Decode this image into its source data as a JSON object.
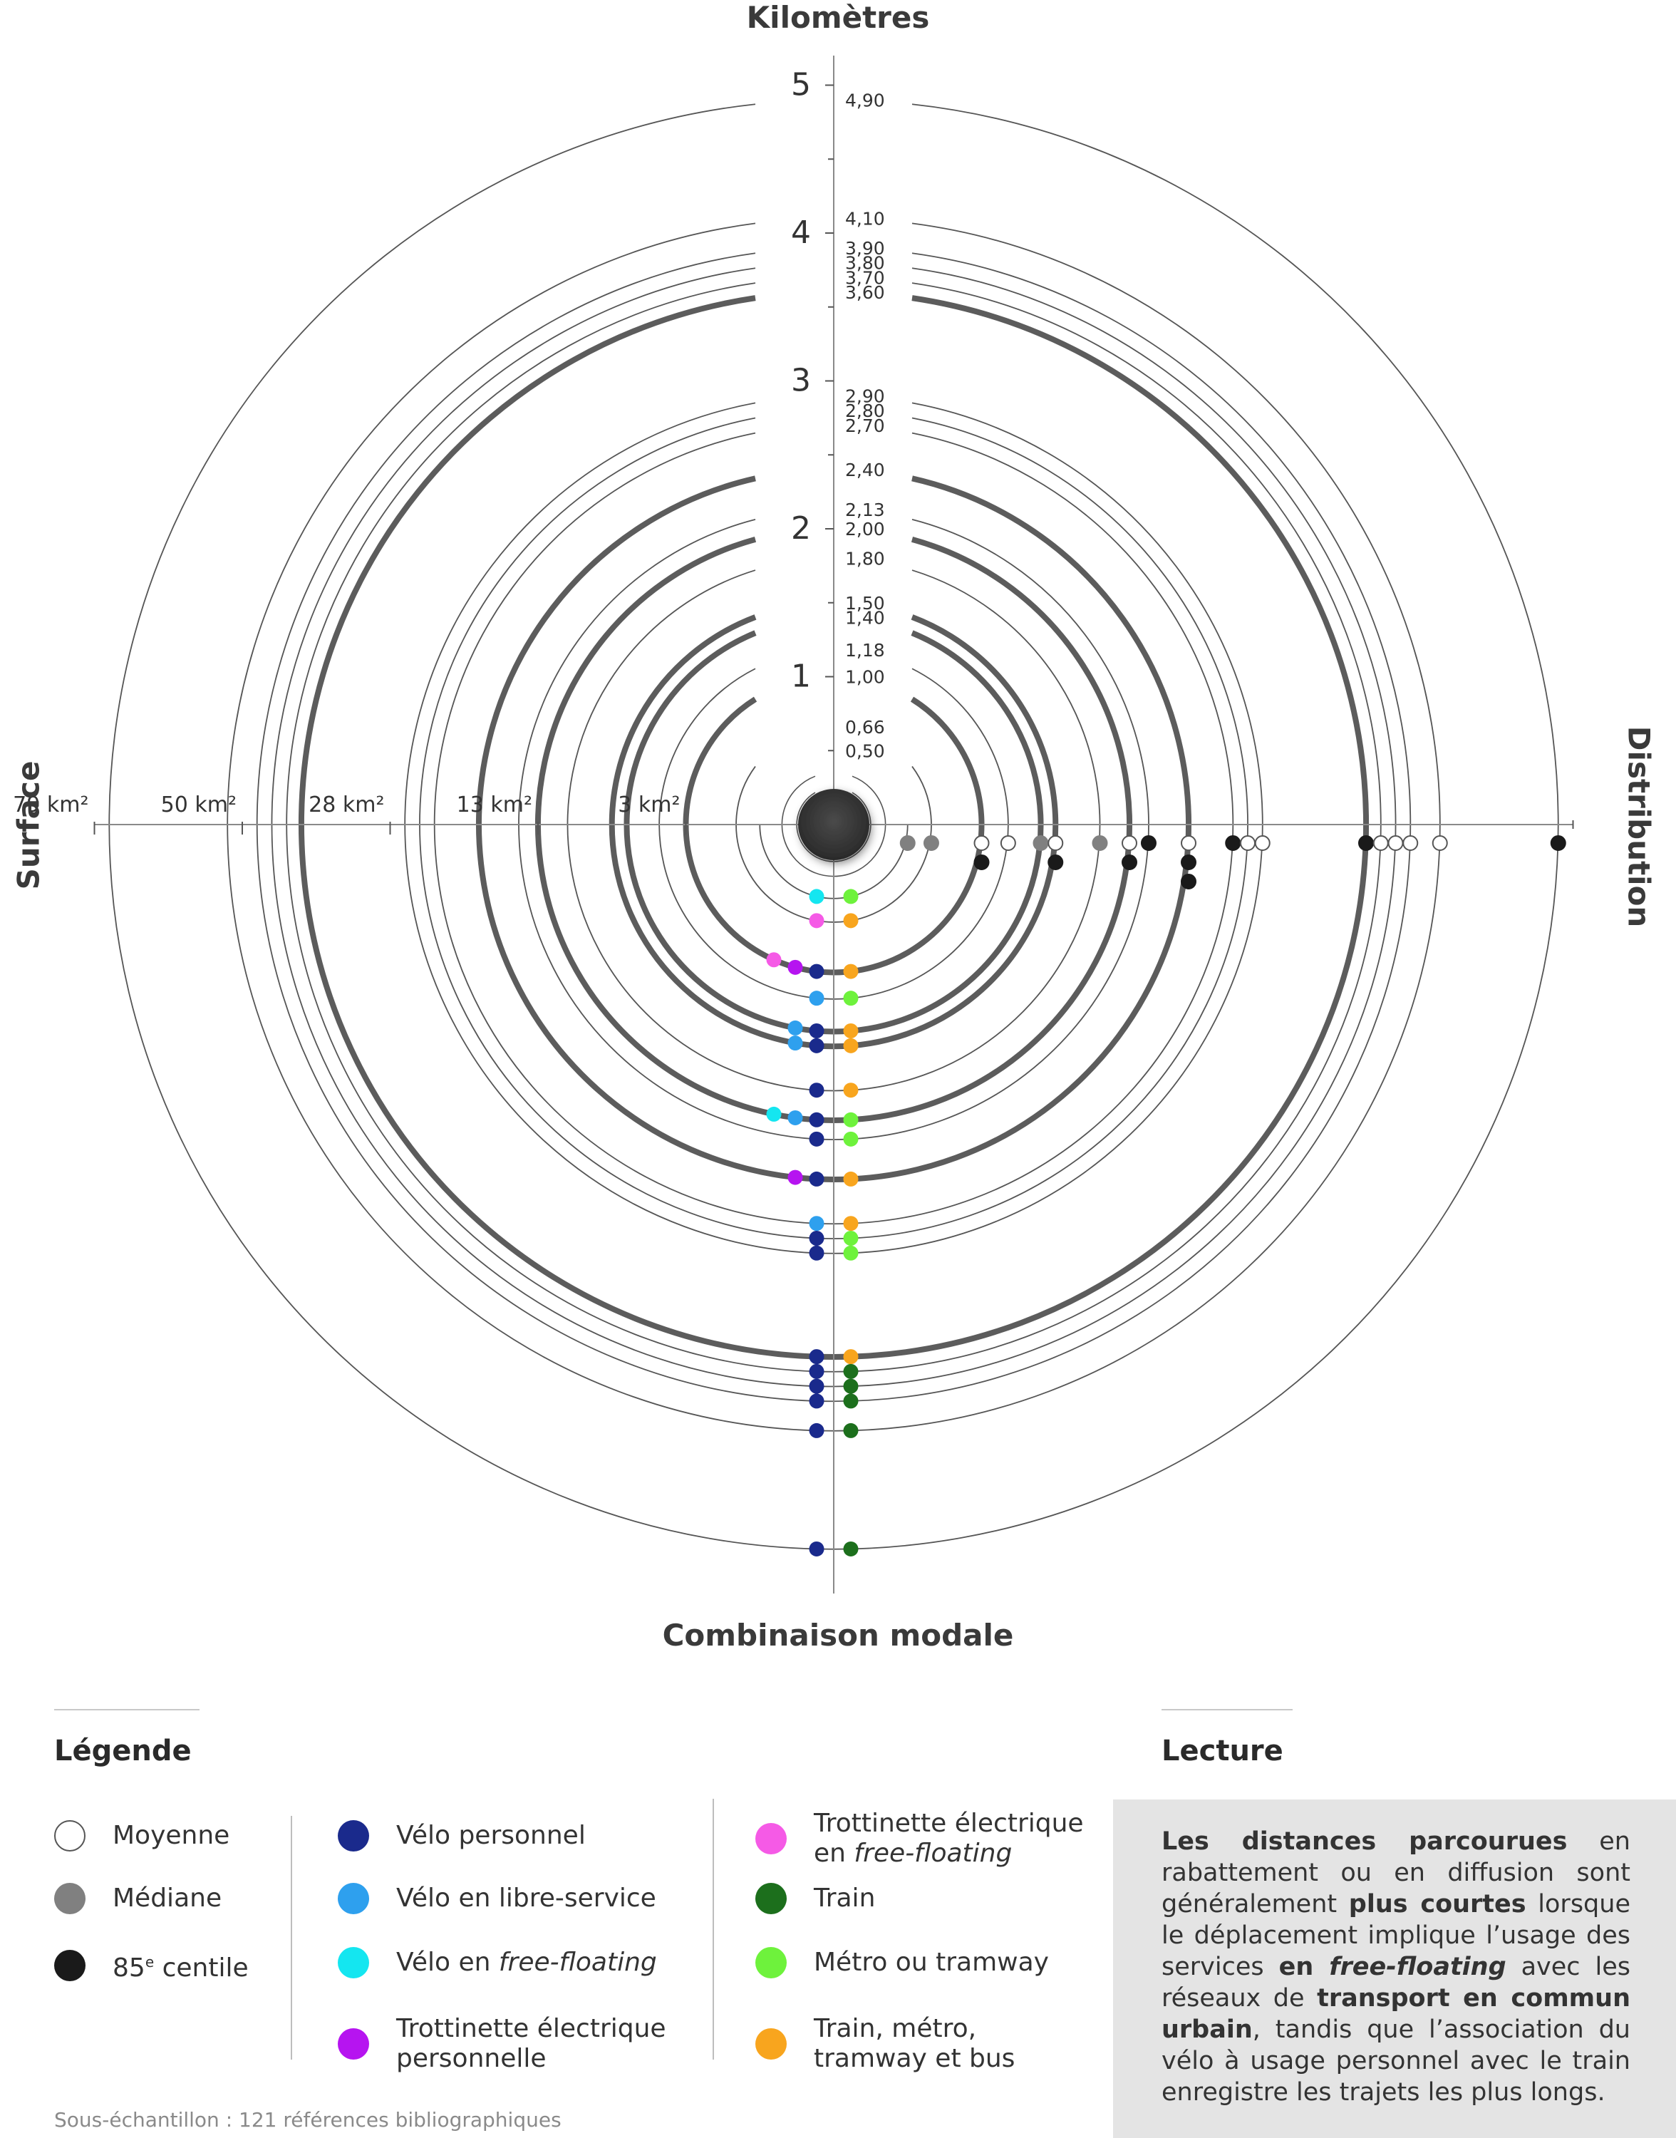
{
  "axis_titles": {
    "top": "Kilomètres",
    "bottom": "Combinaison modale",
    "left": "Surface",
    "right": "Distribution"
  },
  "chart_data": {
    "type": "radial",
    "km_scale": {
      "min": 0,
      "max": 5,
      "major_ticks": [
        "1",
        "2",
        "3",
        "4",
        "5"
      ]
    },
    "ring_values": [
      {
        "label": "0,50",
        "km": 0.5,
        "weight": "thin"
      },
      {
        "label": "0,66",
        "km": 0.66,
        "weight": "thin"
      },
      {
        "label": "1,00",
        "km": 1.0,
        "weight": "bold"
      },
      {
        "label": "1,18",
        "km": 1.18,
        "weight": "thin"
      },
      {
        "label": "1,40",
        "km": 1.4,
        "weight": "bold"
      },
      {
        "label": "1,50",
        "km": 1.5,
        "weight": "bold"
      },
      {
        "label": "1,80",
        "km": 1.8,
        "weight": "thin"
      },
      {
        "label": "2,00",
        "km": 2.0,
        "weight": "bold"
      },
      {
        "label": "2,13",
        "km": 2.13,
        "weight": "thin"
      },
      {
        "label": "2,40",
        "km": 2.4,
        "weight": "bold"
      },
      {
        "label": "2,70",
        "km": 2.7,
        "weight": "thin"
      },
      {
        "label": "2,80",
        "km": 2.8,
        "weight": "thin"
      },
      {
        "label": "2,90",
        "km": 2.9,
        "weight": "thin"
      },
      {
        "label": "3,60",
        "km": 3.6,
        "weight": "bold"
      },
      {
        "label": "3,70",
        "km": 3.7,
        "weight": "thin"
      },
      {
        "label": "3,80",
        "km": 3.8,
        "weight": "thin"
      },
      {
        "label": "3,90",
        "km": 3.9,
        "weight": "thin"
      },
      {
        "label": "4,10",
        "km": 4.1,
        "weight": "thin"
      },
      {
        "label": "4,90",
        "km": 4.9,
        "weight": "thin"
      }
    ],
    "extra_rings_km": [
      0.25,
      0.35
    ],
    "surface_ticks": [
      {
        "label": "3 km²",
        "km": 1.0
      },
      {
        "label": "13 km²",
        "km": 2.0
      },
      {
        "label": "28 km²",
        "km": 3.0
      },
      {
        "label": "50 km²",
        "km": 4.0
      },
      {
        "label": "79 km²",
        "km": 5.0
      }
    ],
    "distribution_points": [
      {
        "km": 0.5,
        "stat": "mediane"
      },
      {
        "km": 0.66,
        "stat": "mediane"
      },
      {
        "km": 1.0,
        "stat": "moyenne"
      },
      {
        "km": 1.0,
        "stat": "centile85"
      },
      {
        "km": 1.18,
        "stat": "moyenne"
      },
      {
        "km": 1.4,
        "stat": "mediane"
      },
      {
        "km": 1.5,
        "stat": "moyenne"
      },
      {
        "km": 1.5,
        "stat": "centile85"
      },
      {
        "km": 1.8,
        "stat": "mediane"
      },
      {
        "km": 2.0,
        "stat": "moyenne"
      },
      {
        "km": 2.0,
        "stat": "centile85"
      },
      {
        "km": 2.13,
        "stat": "centile85"
      },
      {
        "km": 2.4,
        "stat": "moyenne"
      },
      {
        "km": 2.4,
        "stat": "centile85"
      },
      {
        "km": 2.4,
        "stat": "centile85"
      },
      {
        "km": 2.7,
        "stat": "centile85"
      },
      {
        "km": 2.8,
        "stat": "moyenne"
      },
      {
        "km": 2.9,
        "stat": "moyenne"
      },
      {
        "km": 3.6,
        "stat": "centile85"
      },
      {
        "km": 3.7,
        "stat": "moyenne"
      },
      {
        "km": 3.8,
        "stat": "moyenne"
      },
      {
        "km": 3.9,
        "stat": "moyenne"
      },
      {
        "km": 4.1,
        "stat": "moyenne"
      },
      {
        "km": 4.9,
        "stat": "centile85"
      }
    ],
    "combinations": [
      {
        "km": 0.5,
        "left_modes": [
          "velo_ff"
        ],
        "right_mode": "metro_tramway"
      },
      {
        "km": 0.66,
        "left_modes": [
          "trott_ff"
        ],
        "right_mode": "train_metro_tram_bus"
      },
      {
        "km": 1.0,
        "left_modes": [
          "trott_ff",
          "trott_perso",
          "velo_perso"
        ],
        "right_mode": "train_metro_tram_bus"
      },
      {
        "km": 1.18,
        "left_modes": [
          "velo_libre"
        ],
        "right_mode": "metro_tramway"
      },
      {
        "km": 1.4,
        "left_modes": [
          "velo_libre",
          "velo_perso"
        ],
        "right_mode": "train_metro_tram_bus"
      },
      {
        "km": 1.5,
        "left_modes": [
          "velo_libre",
          "velo_perso"
        ],
        "right_mode": "train_metro_tram_bus"
      },
      {
        "km": 1.8,
        "left_modes": [
          "velo_perso"
        ],
        "right_mode": "train_metro_tram_bus"
      },
      {
        "km": 2.0,
        "left_modes": [
          "velo_ff",
          "velo_libre",
          "velo_perso"
        ],
        "right_mode": "metro_tramway"
      },
      {
        "km": 2.13,
        "left_modes": [
          "velo_perso"
        ],
        "right_mode": "metro_tramway"
      },
      {
        "km": 2.4,
        "left_modes": [
          "trott_perso",
          "velo_perso"
        ],
        "right_mode": "train_metro_tram_bus"
      },
      {
        "km": 2.7,
        "left_modes": [
          "velo_libre"
        ],
        "right_mode": "train_metro_tram_bus"
      },
      {
        "km": 2.8,
        "left_modes": [
          "velo_perso"
        ],
        "right_mode": "metro_tramway"
      },
      {
        "km": 2.9,
        "left_modes": [
          "velo_perso"
        ],
        "right_mode": "metro_tramway"
      },
      {
        "km": 3.6,
        "left_modes": [
          "velo_perso"
        ],
        "right_mode": "train_metro_tram_bus"
      },
      {
        "km": 3.7,
        "left_modes": [
          "velo_perso"
        ],
        "right_mode": "train"
      },
      {
        "km": 3.8,
        "left_modes": [
          "velo_perso"
        ],
        "right_mode": "train"
      },
      {
        "km": 3.9,
        "left_modes": [
          "velo_perso"
        ],
        "right_mode": "train"
      },
      {
        "km": 4.1,
        "left_modes": [
          "velo_perso"
        ],
        "right_mode": "train"
      },
      {
        "km": 4.9,
        "left_modes": [
          "velo_perso"
        ],
        "right_mode": "train"
      }
    ]
  },
  "legend": {
    "title": "Légende",
    "stats": [
      {
        "key": "moyenne",
        "label": "Moyenne",
        "fill": "#ffffff",
        "stroke": "#555555"
      },
      {
        "key": "mediane",
        "label": "Médiane",
        "fill": "#808080",
        "stroke": "#808080"
      },
      {
        "key": "centile85_prefix",
        "label": "85",
        "fill": "#1a1a1a",
        "stroke": "#1a1a1a"
      }
    ],
    "centile85_sup": "e",
    "centile85_suffix": " centile",
    "modes": [
      {
        "key": "velo_perso",
        "label": "Vélo personnel",
        "color": "#1a2a8c"
      },
      {
        "key": "velo_libre",
        "label": "Vélo en libre-service",
        "color": "#2ea0ee"
      },
      {
        "key": "velo_ff",
        "label_prefix": "Vélo en ",
        "label_italic": "free-floating",
        "color": "#14e6f0"
      },
      {
        "key": "trott_perso",
        "label_line1": "Trottinette électrique",
        "label_line2": "personnelle",
        "color": "#b614f0"
      },
      {
        "key": "trott_ff",
        "label_line1": "Trottinette électrique",
        "label_line2_prefix": "en ",
        "label_line2_italic": "free-floating",
        "color": "#f55ae6"
      },
      {
        "key": "train",
        "label": "Train",
        "color": "#1c6f1c"
      },
      {
        "key": "metro_tramway",
        "label": "Métro ou tramway",
        "color": "#6ef23c"
      },
      {
        "key": "train_metro_tram_bus",
        "label_line1": "Train, métro,",
        "label_line2": "tramway et bus",
        "color": "#f8a51e"
      }
    ]
  },
  "reading": {
    "title": "Lecture",
    "segments": [
      {
        "text": "Les distances parcourues",
        "bold": true
      },
      {
        "text": " en rabattement ou en diffusion sont généralement ",
        "bold": false
      },
      {
        "text": "plus courtes",
        "bold": true
      },
      {
        "text": " lorsque le déplacement implique l’usage des services ",
        "bold": false
      },
      {
        "text": "en free-floating",
        "bold": true
      },
      {
        "text": " avec les réseaux de ",
        "bold": false
      },
      {
        "text": "transport en commun urbain",
        "bold": true
      },
      {
        "text": ", tandis que l’association du vélo à usage personnel avec le train enregistre les trajets les plus longs.",
        "bold": false
      }
    ]
  },
  "footnote": "Sous-échantillon : 121 références bibliographiques",
  "colors": {
    "ring_thin": "#555555",
    "ring_bold": "#5c5c5c",
    "axis": "#8a8a8a",
    "center": "#3a3a3a",
    "reading_bg": "#e4e4e4"
  }
}
